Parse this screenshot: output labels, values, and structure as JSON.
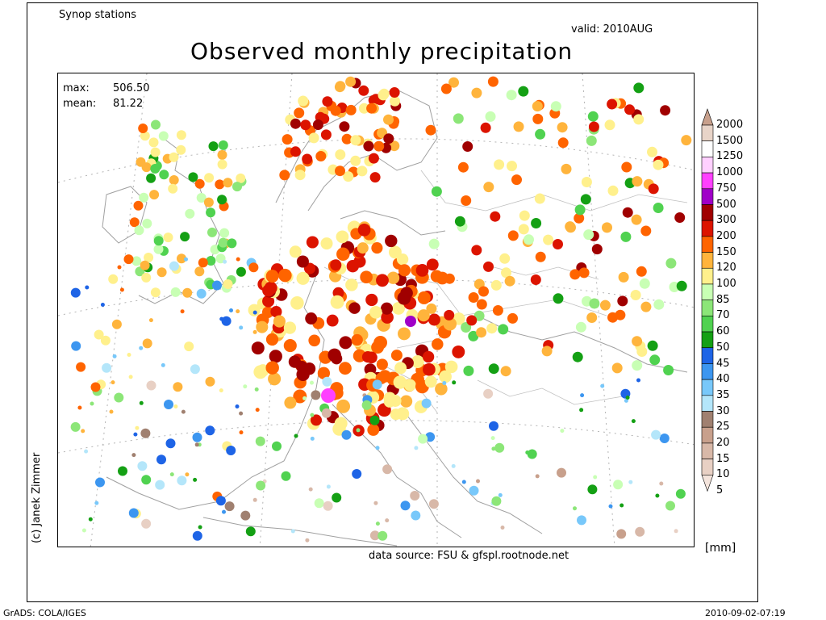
{
  "header": {
    "left": "Synop stations",
    "valid": "valid: 2010AUG",
    "title": "Observed monthly precipitation"
  },
  "stats": {
    "max_label": "max:",
    "max_value": "506.50",
    "mean_label": "mean:",
    "mean_value": "81.22"
  },
  "copyright": "(c) Janek Zimmer",
  "source": "data source: FSU & gfspl.rootnode.net",
  "unit": "[mm]",
  "footer": {
    "left": "GrADS: COLA/IGES",
    "right": "2010-09-02-07:19"
  },
  "legend": {
    "levels": [
      "2000",
      "1500",
      "1250",
      "1000",
      "750",
      "500",
      "300",
      "200",
      "150",
      "120",
      "100",
      "85",
      "70",
      "60",
      "50",
      "45",
      "40",
      "35",
      "30",
      "25",
      "20",
      "15",
      "10",
      "5"
    ],
    "colors": [
      "#c8a08c",
      "#e8d4c8",
      "#ffffff",
      "#ffd0ff",
      "#ff40ff",
      "#a000c8",
      "#a00000",
      "#dc1400",
      "#ff6400",
      "#ffb43c",
      "#fff08c",
      "#c8ffb4",
      "#8ce678",
      "#50d250",
      "#14a014",
      "#1e64e6",
      "#3c96f0",
      "#78c8fa",
      "#b4e6fa",
      "#a08070",
      "#c8a08c",
      "#d8b8a8",
      "#e8d0c4",
      "#f4e4dc"
    ]
  },
  "map": {
    "land_color": "#ffffff",
    "border_color": "#a0a0a0",
    "grid_color": "#b4b4b4"
  }
}
